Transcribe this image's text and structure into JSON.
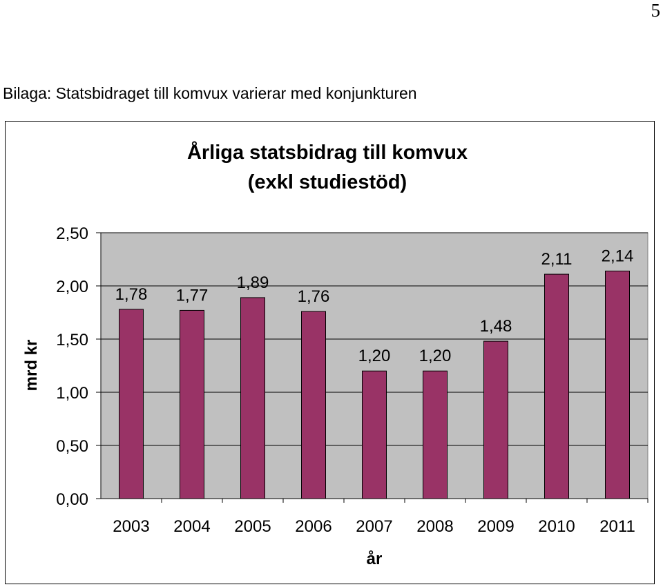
{
  "page_number": "5",
  "section_heading": "Bilaga: Statsbidraget till komvux varierar med konjunkturen",
  "chart_data": {
    "type": "bar",
    "title": "Årliga statsbidrag till komvux",
    "subtitle": "(exkl studiestöd)",
    "xlabel": "år",
    "ylabel": "mrd kr",
    "categories": [
      "2003",
      "2004",
      "2005",
      "2006",
      "2007",
      "2008",
      "2009",
      "2010",
      "2011"
    ],
    "values": [
      1.78,
      1.77,
      1.89,
      1.76,
      1.2,
      1.2,
      1.48,
      2.11,
      2.14
    ],
    "value_labels": [
      "1,78",
      "1,77",
      "1,89",
      "1,76",
      "1,20",
      "1,20",
      "1,48",
      "2,11",
      "2,14"
    ],
    "ylim": [
      0,
      2.5
    ],
    "yticks": [
      0,
      0.5,
      1.0,
      1.5,
      2.0,
      2.5
    ],
    "ytick_labels": [
      "0,00",
      "0,50",
      "1,00",
      "1,50",
      "2,00",
      "2,50"
    ],
    "grid": true,
    "colors": {
      "bar": "#993366",
      "plot_bg": "#c0c0c0",
      "grid": "#000000"
    }
  }
}
